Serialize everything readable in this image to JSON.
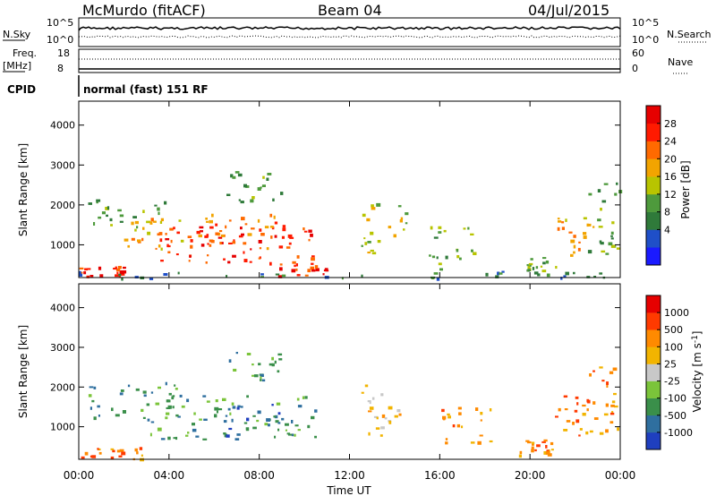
{
  "header": {
    "station": "McMurdo (fitACF)",
    "beam": "Beam 04",
    "date": "04/Jul/2015"
  },
  "top_panels": {
    "nsky_label": "N.Sky",
    "nsky_ticks": [
      "10^5",
      "10^0"
    ],
    "nsearch_label": "N.Search",
    "freq_label": "Freq.",
    "freq_unit": "[MHz]",
    "freq_ticks": [
      "18",
      "8"
    ],
    "nave_label": "Nave",
    "nave_ticks": [
      "60",
      "0"
    ],
    "cpid_label": "CPID",
    "cpid_value": "normal (fast) 151 RF"
  },
  "chart_data": [
    {
      "type": "heatmap",
      "name": "power",
      "ylabel": "Slant Range [km]",
      "xlabel": "Time UT",
      "x_ticks": [
        "00:00",
        "04:00",
        "08:00",
        "12:00",
        "16:00",
        "20:00",
        "00:00"
      ],
      "x_range_hours": [
        0,
        24
      ],
      "y_ticks": [
        1000,
        2000,
        3000,
        4000
      ],
      "ylim": [
        180,
        4600
      ],
      "colorbar": {
        "label": "Power [dB]",
        "ticks": [
          "28",
          "24",
          "20",
          "16",
          "12",
          "8",
          "4"
        ],
        "colors": [
          "#1a1aff",
          "#1f4fc8",
          "#2f7a3a",
          "#4e9a3c",
          "#b8c400",
          "#f2a400",
          "#ff6a00",
          "#ff1a00",
          "#e60000"
        ]
      },
      "regions": [
        {
          "t0": 0.3,
          "t1": 4.2,
          "r0": 1450,
          "r1": 2150,
          "level": 3
        },
        {
          "t0": 2.0,
          "t1": 6.5,
          "r0": 900,
          "r1": 1700,
          "level": 5
        },
        {
          "t0": 3.5,
          "t1": 10.5,
          "r0": 550,
          "r1": 1600,
          "level": 7
        },
        {
          "t0": 5.5,
          "t1": 9.5,
          "r0": 900,
          "r1": 1800,
          "level": 6
        },
        {
          "t0": 8.8,
          "t1": 11.0,
          "r0": 220,
          "r1": 600,
          "level": 7
        },
        {
          "t0": 0.0,
          "t1": 2.0,
          "r0": 200,
          "r1": 500,
          "level": 7
        },
        {
          "t0": 6.5,
          "t1": 9.0,
          "r0": 2100,
          "r1": 2900,
          "level": 3
        },
        {
          "t0": 12.5,
          "t1": 14.5,
          "r0": 800,
          "r1": 2100,
          "level": 4
        },
        {
          "t0": 15.5,
          "t1": 17.5,
          "r0": 400,
          "r1": 1500,
          "level": 3
        },
        {
          "t0": 19.8,
          "t1": 21.2,
          "r0": 250,
          "r1": 700,
          "level": 3
        },
        {
          "t0": 21.2,
          "t1": 22.8,
          "r0": 750,
          "r1": 1700,
          "level": 5
        },
        {
          "t0": 22.5,
          "t1": 24.0,
          "r0": 800,
          "r1": 2600,
          "level": 3
        },
        {
          "t0": 0.0,
          "t1": 24.0,
          "r0": 180,
          "r1": 350,
          "level": 2
        }
      ]
    },
    {
      "type": "heatmap",
      "name": "velocity",
      "ylabel": "Slant Range [km]",
      "xlabel": "Time UT",
      "x_ticks": [
        "00:00",
        "04:00",
        "08:00",
        "12:00",
        "16:00",
        "20:00",
        "00:00"
      ],
      "x_range_hours": [
        0,
        24
      ],
      "y_ticks": [
        1000,
        2000,
        3000,
        4000
      ],
      "ylim": [
        180,
        4600
      ],
      "colorbar": {
        "label": "Velocity [m s^-1]",
        "ticks": [
          "1000",
          "500",
          "100",
          "25",
          "-25",
          "-100",
          "-500",
          "-1000"
        ],
        "colors": [
          "#1f3fbf",
          "#2f6f9f",
          "#3a8f4a",
          "#7bc43a",
          "#c8c8c8",
          "#f2b400",
          "#ff8a00",
          "#ff3a00",
          "#e60000"
        ]
      },
      "regions": [
        {
          "t0": 0.3,
          "t1": 4.5,
          "r0": 1200,
          "r1": 2150,
          "level": 2
        },
        {
          "t0": 3.0,
          "t1": 10.5,
          "r0": 700,
          "r1": 1800,
          "level": 2
        },
        {
          "t0": 6.0,
          "t1": 9.0,
          "r0": 800,
          "r1": 1600,
          "level": 1
        },
        {
          "t0": 6.5,
          "t1": 9.0,
          "r0": 2100,
          "r1": 2900,
          "level": 2
        },
        {
          "t0": 0.0,
          "t1": 3.0,
          "r0": 200,
          "r1": 500,
          "level": 6
        },
        {
          "t0": 12.5,
          "t1": 14.5,
          "r0": 800,
          "r1": 2100,
          "level": 5
        },
        {
          "t0": 16.0,
          "t1": 18.5,
          "r0": 600,
          "r1": 1500,
          "level": 6
        },
        {
          "t0": 19.5,
          "t1": 21.0,
          "r0": 300,
          "r1": 700,
          "level": 6
        },
        {
          "t0": 21.0,
          "t1": 22.8,
          "r0": 800,
          "r1": 1800,
          "level": 6
        },
        {
          "t0": 22.5,
          "t1": 24.0,
          "r0": 800,
          "r1": 2600,
          "level": 6
        }
      ]
    }
  ]
}
